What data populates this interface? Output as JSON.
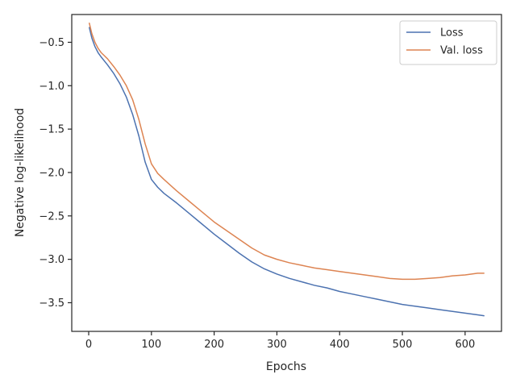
{
  "chart_data": {
    "type": "line",
    "title": "",
    "xlabel": "Epochs",
    "ylabel": "Negative log-likelihood",
    "xlim": [
      -27,
      658
    ],
    "ylim": [
      -3.83,
      -0.18
    ],
    "xticks": [
      0,
      100,
      200,
      300,
      400,
      500,
      600
    ],
    "yticks": [
      -0.5,
      -1.0,
      -1.5,
      -2.0,
      -2.5,
      -3.0,
      -3.5
    ],
    "xtick_labels": [
      "0",
      "100",
      "200",
      "300",
      "400",
      "500",
      "600"
    ],
    "ytick_labels": [
      "−0.5",
      "−1.0",
      "−1.5",
      "−2.0",
      "−2.5",
      "−3.0",
      "−3.5"
    ],
    "grid": false,
    "legend_position": "top-right",
    "series": [
      {
        "name": "Loss",
        "color": "#4c72b0",
        "x": [
          1,
          5,
          10,
          15,
          20,
          30,
          40,
          50,
          60,
          70,
          80,
          90,
          100,
          110,
          120,
          140,
          160,
          180,
          200,
          220,
          240,
          260,
          280,
          300,
          320,
          340,
          360,
          380,
          400,
          420,
          440,
          460,
          480,
          500,
          520,
          540,
          560,
          580,
          600,
          620,
          630
        ],
        "y": [
          -0.33,
          -0.45,
          -0.55,
          -0.62,
          -0.67,
          -0.76,
          -0.86,
          -0.98,
          -1.13,
          -1.33,
          -1.58,
          -1.88,
          -2.08,
          -2.17,
          -2.24,
          -2.35,
          -2.47,
          -2.59,
          -2.71,
          -2.82,
          -2.93,
          -3.03,
          -3.11,
          -3.17,
          -3.22,
          -3.26,
          -3.3,
          -3.33,
          -3.37,
          -3.4,
          -3.43,
          -3.46,
          -3.49,
          -3.52,
          -3.54,
          -3.56,
          -3.58,
          -3.6,
          -3.62,
          -3.64,
          -3.65
        ]
      },
      {
        "name": "Val. loss",
        "color": "#dd8452",
        "x": [
          1,
          5,
          10,
          15,
          20,
          30,
          40,
          50,
          60,
          70,
          80,
          90,
          100,
          110,
          120,
          140,
          160,
          180,
          200,
          220,
          240,
          260,
          280,
          300,
          320,
          340,
          360,
          380,
          400,
          420,
          440,
          460,
          480,
          500,
          520,
          540,
          560,
          580,
          600,
          620,
          630
        ],
        "y": [
          -0.28,
          -0.4,
          -0.5,
          -0.57,
          -0.62,
          -0.69,
          -0.78,
          -0.88,
          -1.0,
          -1.16,
          -1.39,
          -1.67,
          -1.9,
          -2.01,
          -2.08,
          -2.21,
          -2.33,
          -2.45,
          -2.57,
          -2.67,
          -2.77,
          -2.87,
          -2.95,
          -3.0,
          -3.04,
          -3.07,
          -3.1,
          -3.12,
          -3.14,
          -3.16,
          -3.18,
          -3.2,
          -3.22,
          -3.23,
          -3.23,
          -3.22,
          -3.21,
          -3.19,
          -3.18,
          -3.16,
          -3.16
        ]
      }
    ]
  }
}
